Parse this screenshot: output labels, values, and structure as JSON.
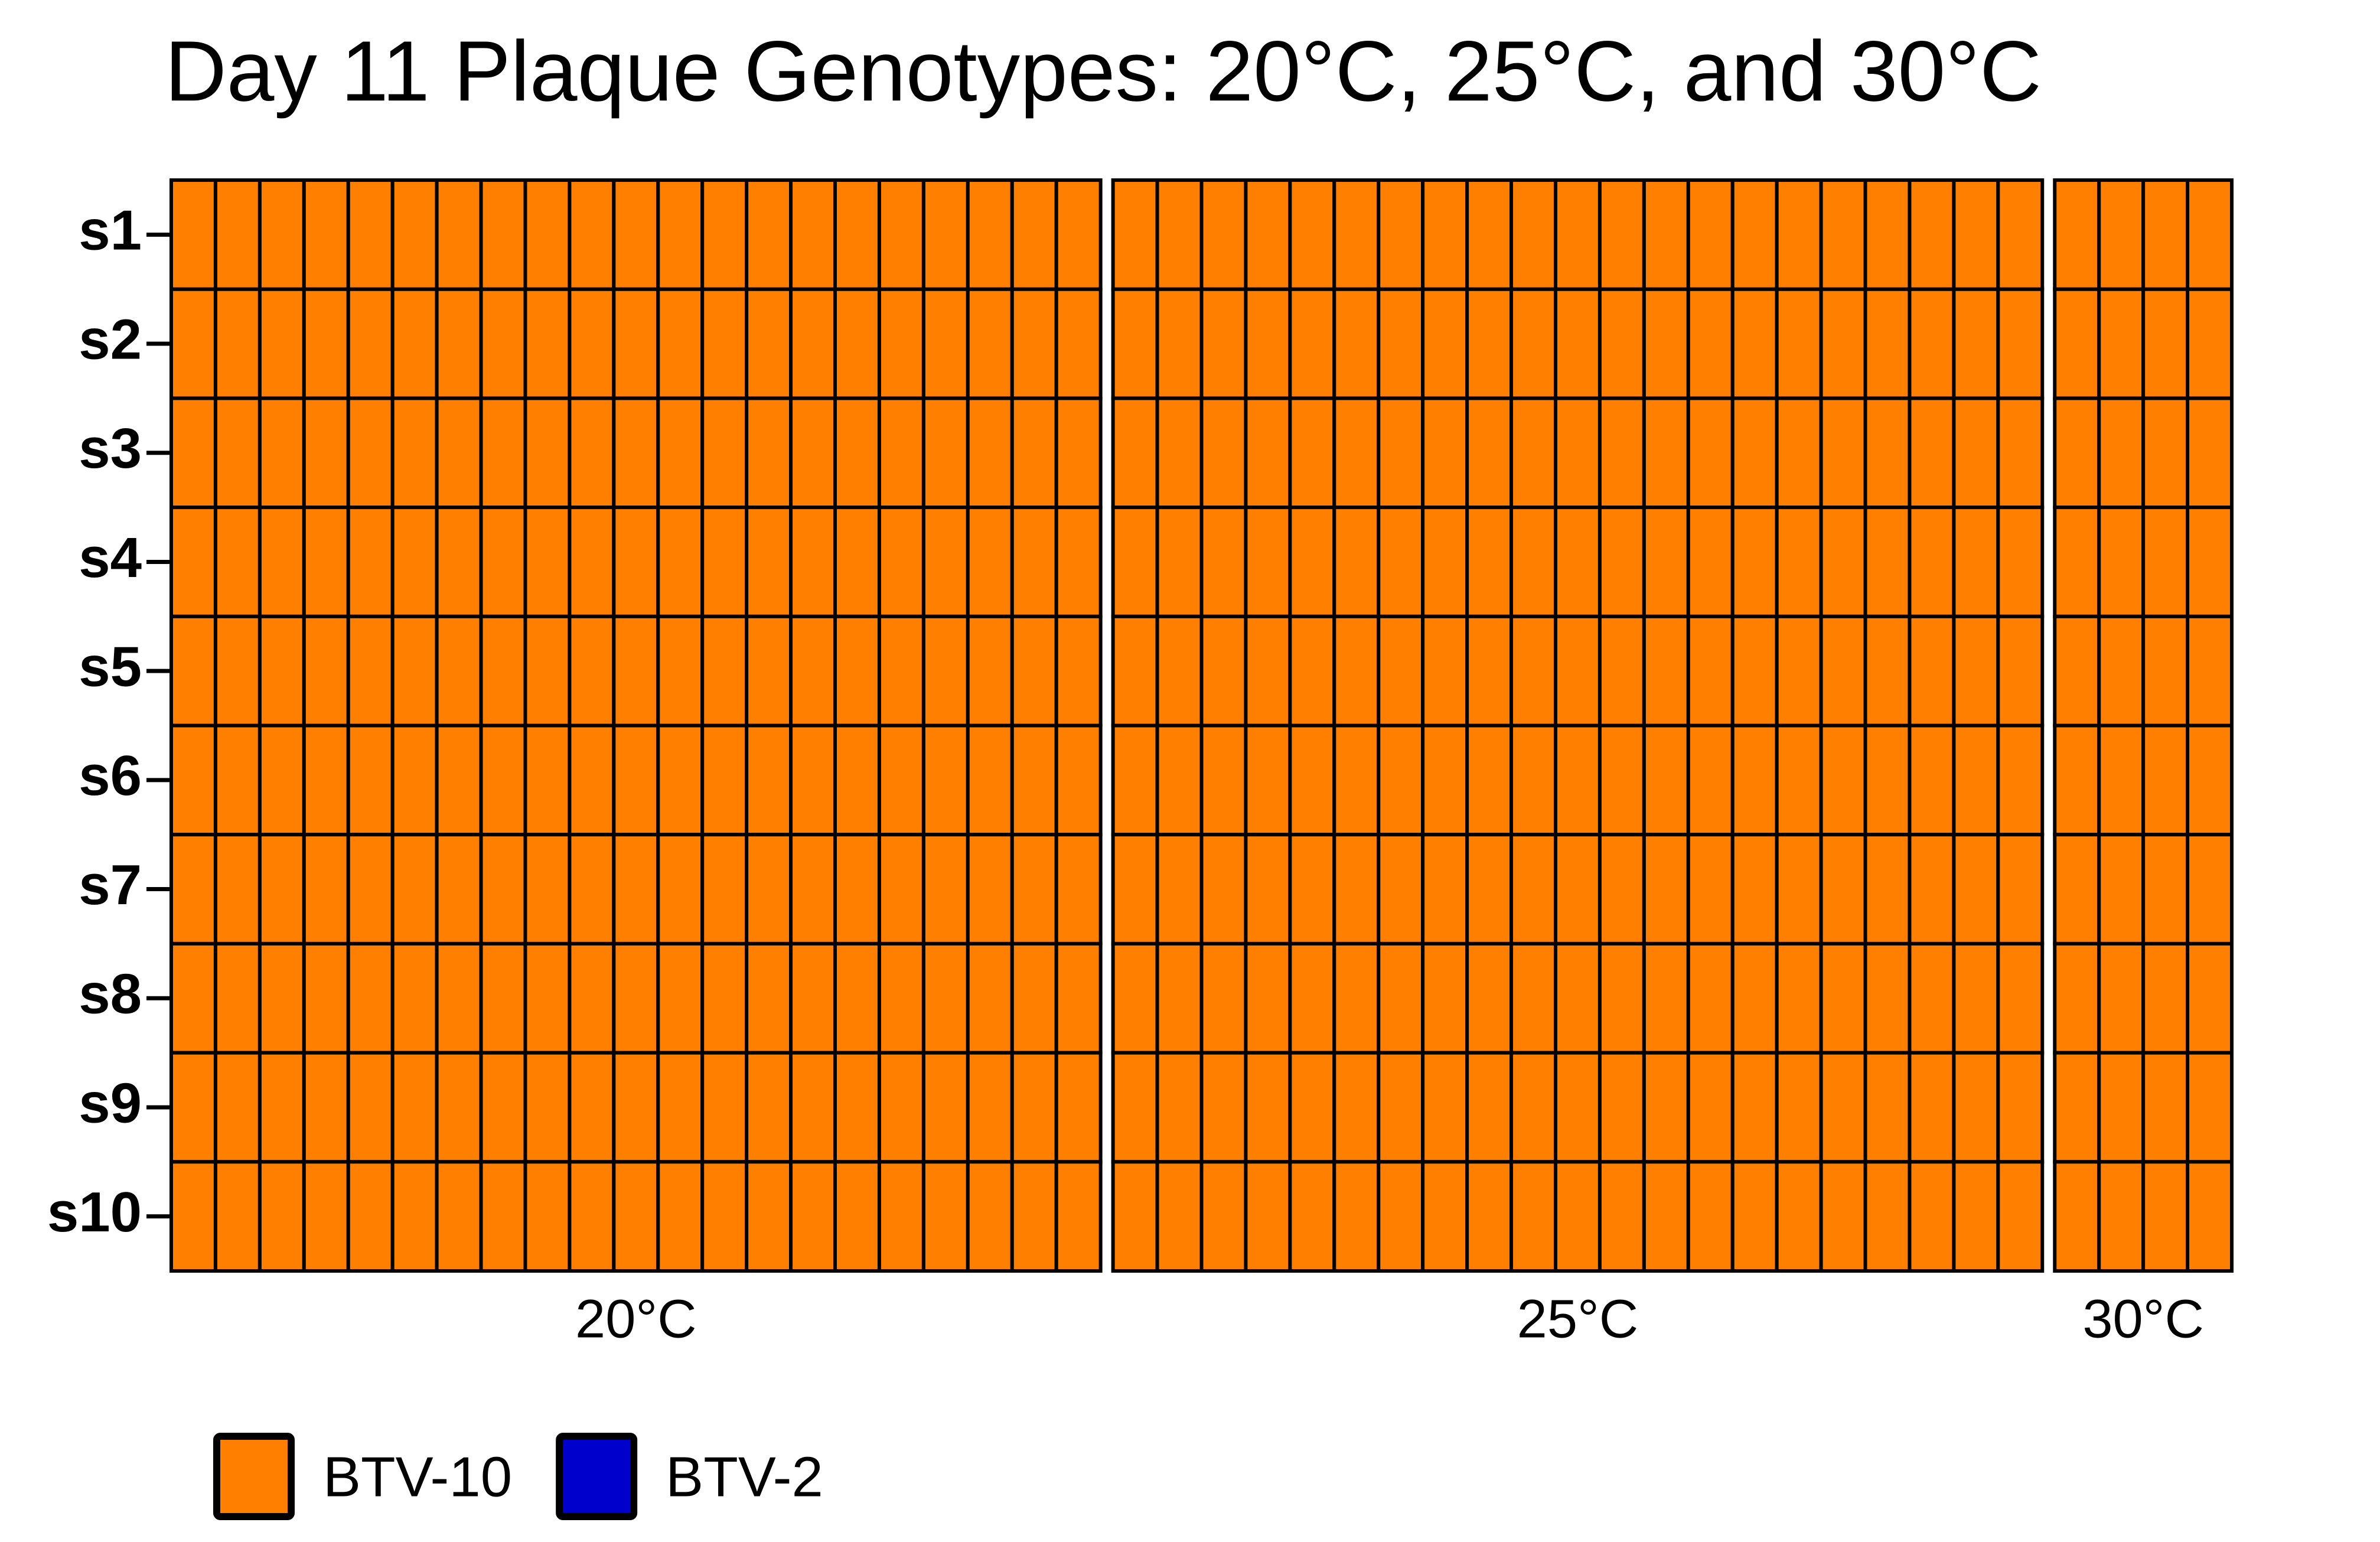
{
  "chart_data": {
    "type": "heatmap",
    "title": "Day 11 Plaque Genotypes: 20°C, 25°C, and 30°C",
    "rows": [
      "s1",
      "s2",
      "s3",
      "s4",
      "s5",
      "s6",
      "s7",
      "s8",
      "s9",
      "s10"
    ],
    "legend": [
      {
        "name": "BTV-10",
        "color": "#ff7f00"
      },
      {
        "name": "BTV-2",
        "color": "#0000cc"
      }
    ],
    "legend_position": "bottom-left",
    "panels": [
      {
        "name": "20°C",
        "values": [
          [
            "BTV-10",
            "BTV-10",
            "BTV-10",
            "BTV-10",
            "BTV-10",
            "BTV-10",
            "BTV-10",
            "BTV-10",
            "BTV-10",
            "BTV-10",
            "BTV-10",
            "BTV-10",
            "BTV-10",
            "BTV-10",
            "BTV-10",
            "BTV-10",
            "BTV-10",
            "BTV-10",
            "BTV-10",
            "BTV-10",
            "BTV-10"
          ],
          [
            "BTV-10",
            "BTV-10",
            "BTV-10",
            "BTV-10",
            "BTV-10",
            "BTV-10",
            "BTV-10",
            "BTV-10",
            "BTV-10",
            "BTV-10",
            "BTV-10",
            "BTV-10",
            "BTV-10",
            "BTV-10",
            "BTV-10",
            "BTV-10",
            "BTV-10",
            "BTV-10",
            "BTV-10",
            "BTV-10",
            "BTV-10"
          ],
          [
            "BTV-10",
            "BTV-10",
            "BTV-10",
            "BTV-10",
            "BTV-10",
            "BTV-10",
            "BTV-10",
            "BTV-10",
            "BTV-10",
            "BTV-10",
            "BTV-10",
            "BTV-10",
            "BTV-10",
            "BTV-10",
            "BTV-10",
            "BTV-10",
            "BTV-10",
            "BTV-10",
            "BTV-10",
            "BTV-10",
            "BTV-10"
          ],
          [
            "BTV-10",
            "BTV-10",
            "BTV-10",
            "BTV-10",
            "BTV-10",
            "BTV-10",
            "BTV-10",
            "BTV-10",
            "BTV-10",
            "BTV-10",
            "BTV-10",
            "BTV-10",
            "BTV-10",
            "BTV-10",
            "BTV-10",
            "BTV-10",
            "BTV-10",
            "BTV-10",
            "BTV-10",
            "BTV-10",
            "BTV-10"
          ],
          [
            "BTV-10",
            "BTV-10",
            "BTV-10",
            "BTV-10",
            "BTV-10",
            "BTV-10",
            "BTV-10",
            "BTV-10",
            "BTV-10",
            "BTV-10",
            "BTV-10",
            "BTV-10",
            "BTV-10",
            "BTV-10",
            "BTV-10",
            "BTV-10",
            "BTV-10",
            "BTV-10",
            "BTV-10",
            "BTV-10",
            "BTV-10"
          ],
          [
            "BTV-10",
            "BTV-10",
            "BTV-10",
            "BTV-10",
            "BTV-10",
            "BTV-10",
            "BTV-10",
            "BTV-10",
            "BTV-10",
            "BTV-10",
            "BTV-10",
            "BTV-10",
            "BTV-10",
            "BTV-10",
            "BTV-10",
            "BTV-10",
            "BTV-10",
            "BTV-10",
            "BTV-10",
            "BTV-10",
            "BTV-10"
          ],
          [
            "BTV-10",
            "BTV-10",
            "BTV-10",
            "BTV-10",
            "BTV-10",
            "BTV-10",
            "BTV-10",
            "BTV-10",
            "BTV-10",
            "BTV-10",
            "BTV-10",
            "BTV-10",
            "BTV-10",
            "BTV-10",
            "BTV-10",
            "BTV-10",
            "BTV-10",
            "BTV-10",
            "BTV-10",
            "BTV-10",
            "BTV-10"
          ],
          [
            "BTV-10",
            "BTV-10",
            "BTV-10",
            "BTV-10",
            "BTV-10",
            "BTV-10",
            "BTV-10",
            "BTV-10",
            "BTV-10",
            "BTV-10",
            "BTV-10",
            "BTV-10",
            "BTV-10",
            "BTV-10",
            "BTV-10",
            "BTV-10",
            "BTV-10",
            "BTV-10",
            "BTV-10",
            "BTV-10",
            "BTV-10"
          ],
          [
            "BTV-10",
            "BTV-10",
            "BTV-10",
            "BTV-10",
            "BTV-10",
            "BTV-10",
            "BTV-10",
            "BTV-10",
            "BTV-10",
            "BTV-10",
            "BTV-10",
            "BTV-10",
            "BTV-10",
            "BTV-10",
            "BTV-10",
            "BTV-10",
            "BTV-10",
            "BTV-10",
            "BTV-10",
            "BTV-10",
            "BTV-10"
          ],
          [
            "BTV-10",
            "BTV-10",
            "BTV-10",
            "BTV-10",
            "BTV-10",
            "BTV-10",
            "BTV-10",
            "BTV-10",
            "BTV-10",
            "BTV-10",
            "BTV-10",
            "BTV-10",
            "BTV-10",
            "BTV-10",
            "BTV-10",
            "BTV-10",
            "BTV-10",
            "BTV-10",
            "BTV-10",
            "BTV-10",
            "BTV-10"
          ]
        ]
      },
      {
        "name": "25°C",
        "values": [
          [
            "BTV-10",
            "BTV-10",
            "BTV-10",
            "BTV-10",
            "BTV-10",
            "BTV-10",
            "BTV-10",
            "BTV-10",
            "BTV-10",
            "BTV-10",
            "BTV-10",
            "BTV-10",
            "BTV-10",
            "BTV-10",
            "BTV-10",
            "BTV-10",
            "BTV-10",
            "BTV-10",
            "BTV-10",
            "BTV-10",
            "BTV-10"
          ],
          [
            "BTV-10",
            "BTV-10",
            "BTV-10",
            "BTV-10",
            "BTV-10",
            "BTV-10",
            "BTV-10",
            "BTV-10",
            "BTV-10",
            "BTV-10",
            "BTV-10",
            "BTV-10",
            "BTV-10",
            "BTV-10",
            "BTV-10",
            "BTV-10",
            "BTV-10",
            "BTV-10",
            "BTV-10",
            "BTV-10",
            "BTV-10"
          ],
          [
            "BTV-10",
            "BTV-10",
            "BTV-10",
            "BTV-10",
            "BTV-10",
            "BTV-10",
            "BTV-10",
            "BTV-10",
            "BTV-10",
            "BTV-10",
            "BTV-10",
            "BTV-10",
            "BTV-10",
            "BTV-10",
            "BTV-10",
            "BTV-10",
            "BTV-10",
            "BTV-10",
            "BTV-10",
            "BTV-10",
            "BTV-10"
          ],
          [
            "BTV-10",
            "BTV-10",
            "BTV-10",
            "BTV-10",
            "BTV-10",
            "BTV-10",
            "BTV-10",
            "BTV-10",
            "BTV-10",
            "BTV-10",
            "BTV-10",
            "BTV-10",
            "BTV-10",
            "BTV-10",
            "BTV-10",
            "BTV-10",
            "BTV-10",
            "BTV-10",
            "BTV-10",
            "BTV-10",
            "BTV-10"
          ],
          [
            "BTV-10",
            "BTV-10",
            "BTV-10",
            "BTV-10",
            "BTV-10",
            "BTV-10",
            "BTV-10",
            "BTV-10",
            "BTV-10",
            "BTV-10",
            "BTV-10",
            "BTV-10",
            "BTV-10",
            "BTV-10",
            "BTV-10",
            "BTV-10",
            "BTV-10",
            "BTV-10",
            "BTV-10",
            "BTV-10",
            "BTV-10"
          ],
          [
            "BTV-10",
            "BTV-10",
            "BTV-10",
            "BTV-10",
            "BTV-10",
            "BTV-10",
            "BTV-10",
            "BTV-10",
            "BTV-10",
            "BTV-10",
            "BTV-10",
            "BTV-10",
            "BTV-10",
            "BTV-10",
            "BTV-10",
            "BTV-10",
            "BTV-10",
            "BTV-10",
            "BTV-10",
            "BTV-10",
            "BTV-10"
          ],
          [
            "BTV-10",
            "BTV-10",
            "BTV-10",
            "BTV-10",
            "BTV-10",
            "BTV-10",
            "BTV-10",
            "BTV-10",
            "BTV-10",
            "BTV-10",
            "BTV-10",
            "BTV-10",
            "BTV-10",
            "BTV-10",
            "BTV-10",
            "BTV-10",
            "BTV-10",
            "BTV-10",
            "BTV-10",
            "BTV-10",
            "BTV-10"
          ],
          [
            "BTV-10",
            "BTV-10",
            "BTV-10",
            "BTV-10",
            "BTV-10",
            "BTV-10",
            "BTV-10",
            "BTV-10",
            "BTV-10",
            "BTV-10",
            "BTV-10",
            "BTV-10",
            "BTV-10",
            "BTV-10",
            "BTV-10",
            "BTV-10",
            "BTV-10",
            "BTV-10",
            "BTV-10",
            "BTV-10",
            "BTV-10"
          ],
          [
            "BTV-10",
            "BTV-10",
            "BTV-10",
            "BTV-10",
            "BTV-10",
            "BTV-10",
            "BTV-10",
            "BTV-10",
            "BTV-10",
            "BTV-10",
            "BTV-10",
            "BTV-10",
            "BTV-10",
            "BTV-10",
            "BTV-10",
            "BTV-10",
            "BTV-10",
            "BTV-10",
            "BTV-10",
            "BTV-10",
            "BTV-10"
          ],
          [
            "BTV-10",
            "BTV-10",
            "BTV-10",
            "BTV-10",
            "BTV-10",
            "BTV-10",
            "BTV-10",
            "BTV-10",
            "BTV-10",
            "BTV-10",
            "BTV-10",
            "BTV-10",
            "BTV-10",
            "BTV-10",
            "BTV-10",
            "BTV-10",
            "BTV-10",
            "BTV-10",
            "BTV-10",
            "BTV-10",
            "BTV-10"
          ]
        ]
      },
      {
        "name": "30°C",
        "values": [
          [
            "BTV-10",
            "BTV-10",
            "BTV-10",
            "BTV-10"
          ],
          [
            "BTV-10",
            "BTV-10",
            "BTV-10",
            "BTV-10"
          ],
          [
            "BTV-10",
            "BTV-10",
            "BTV-10",
            "BTV-10"
          ],
          [
            "BTV-10",
            "BTV-10",
            "BTV-10",
            "BTV-10"
          ],
          [
            "BTV-10",
            "BTV-10",
            "BTV-10",
            "BTV-10"
          ],
          [
            "BTV-10",
            "BTV-10",
            "BTV-10",
            "BTV-10"
          ],
          [
            "BTV-10",
            "BTV-10",
            "BTV-10",
            "BTV-10"
          ],
          [
            "BTV-10",
            "BTV-10",
            "BTV-10",
            "BTV-10"
          ],
          [
            "BTV-10",
            "BTV-10",
            "BTV-10",
            "BTV-10"
          ],
          [
            "BTV-10",
            "BTV-10",
            "BTV-10",
            "BTV-10"
          ]
        ]
      }
    ]
  }
}
